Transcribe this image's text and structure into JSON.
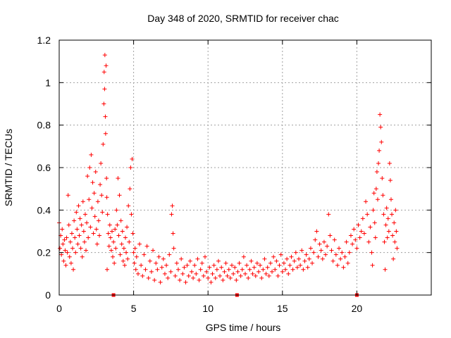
{
  "chart_data": {
    "type": "scatter",
    "title": "Day 348 of 2020, SRMTID for receiver chac",
    "xlabel": "GPS time / hours",
    "ylabel": "SRMTID / TECUs",
    "xlim": [
      0,
      25
    ],
    "ylim": [
      0,
      1.2
    ],
    "xticks": [
      0,
      5,
      10,
      15,
      20
    ],
    "yticks": [
      0,
      0.2,
      0.4,
      0.6,
      0.8,
      1,
      1.2
    ],
    "xtick_labels": [
      "0",
      "5",
      "10",
      "15",
      "20"
    ],
    "ytick_labels": [
      "0",
      "0.2",
      "0.4",
      "0.6",
      "0.8",
      "1",
      "1.2"
    ],
    "grid": true,
    "marker": "+",
    "color": "#ff0000",
    "gap_markers_x": [
      3.65,
      11.95,
      20.0
    ],
    "series": [
      {
        "name": "SRMTID",
        "points": [
          [
            0.0,
            0.34
          ],
          [
            0.05,
            0.22
          ],
          [
            0.1,
            0.28
          ],
          [
            0.15,
            0.19
          ],
          [
            0.2,
            0.31
          ],
          [
            0.25,
            0.24
          ],
          [
            0.3,
            0.16
          ],
          [
            0.35,
            0.26
          ],
          [
            0.4,
            0.21
          ],
          [
            0.45,
            0.14
          ],
          [
            0.5,
            0.27
          ],
          [
            0.55,
            0.2
          ],
          [
            0.6,
            0.47
          ],
          [
            0.65,
            0.33
          ],
          [
            0.7,
            0.18
          ],
          [
            0.75,
            0.25
          ],
          [
            0.8,
            0.15
          ],
          [
            0.85,
            0.29
          ],
          [
            0.9,
            0.22
          ],
          [
            0.95,
            0.12
          ],
          [
            1.0,
            0.35
          ],
          [
            1.05,
            0.27
          ],
          [
            1.1,
            0.2
          ],
          [
            1.15,
            0.39
          ],
          [
            1.2,
            0.31
          ],
          [
            1.25,
            0.24
          ],
          [
            1.3,
            0.42
          ],
          [
            1.35,
            0.28
          ],
          [
            1.4,
            0.36
          ],
          [
            1.45,
            0.22
          ],
          [
            1.5,
            0.33
          ],
          [
            1.55,
            0.18
          ],
          [
            1.6,
            0.44
          ],
          [
            1.65,
            0.3
          ],
          [
            1.7,
            0.25
          ],
          [
            1.75,
            0.38
          ],
          [
            1.8,
            0.21
          ],
          [
            1.85,
            0.34
          ],
          [
            1.9,
            0.56
          ],
          [
            1.95,
            0.27
          ],
          [
            2.0,
            0.45
          ],
          [
            2.05,
            0.6
          ],
          [
            2.1,
            0.32
          ],
          [
            2.15,
            0.66
          ],
          [
            2.2,
            0.41
          ],
          [
            2.25,
            0.53
          ],
          [
            2.3,
            0.29
          ],
          [
            2.35,
            0.48
          ],
          [
            2.4,
            0.37
          ],
          [
            2.45,
            0.58
          ],
          [
            2.5,
            0.31
          ],
          [
            2.55,
            0.24
          ],
          [
            2.6,
            0.44
          ],
          [
            2.65,
            0.35
          ],
          [
            2.7,
            0.28
          ],
          [
            2.75,
            0.52
          ],
          [
            2.8,
            0.62
          ],
          [
            2.85,
            0.47
          ],
          [
            2.9,
            0.39
          ],
          [
            2.95,
            0.71
          ],
          [
            3.0,
            0.9
          ],
          [
            3.02,
            1.05
          ],
          [
            3.05,
            0.97
          ],
          [
            3.07,
            1.13
          ],
          [
            3.1,
            0.84
          ],
          [
            3.12,
            0.76
          ],
          [
            3.15,
            1.08
          ],
          [
            3.18,
            0.55
          ],
          [
            3.2,
            0.46
          ],
          [
            3.22,
            0.12
          ],
          [
            3.25,
            0.38
          ],
          [
            3.3,
            0.29
          ],
          [
            3.35,
            0.23
          ],
          [
            3.4,
            0.33
          ],
          [
            3.45,
            0.27
          ],
          [
            3.5,
            0.21
          ],
          [
            3.55,
            0.3
          ],
          [
            3.6,
            0.18
          ],
          [
            3.65,
            0.25
          ],
          [
            3.7,
            0.15
          ],
          [
            3.75,
            0.31
          ],
          [
            3.8,
            0.22
          ],
          [
            3.85,
            0.4
          ],
          [
            3.9,
            0.33
          ],
          [
            3.95,
            0.55
          ],
          [
            4.0,
            0.28
          ],
          [
            4.05,
            0.47
          ],
          [
            4.1,
            0.19
          ],
          [
            4.15,
            0.35
          ],
          [
            4.2,
            0.24
          ],
          [
            4.25,
            0.3
          ],
          [
            4.3,
            0.16
          ],
          [
            4.35,
            0.22
          ],
          [
            4.4,
            0.14
          ],
          [
            4.45,
            0.27
          ],
          [
            4.5,
            0.2
          ],
          [
            4.55,
            0.32
          ],
          [
            4.6,
            0.17
          ],
          [
            4.65,
            0.42
          ],
          [
            4.7,
            0.25
          ],
          [
            4.75,
            0.5
          ],
          [
            4.8,
            0.6
          ],
          [
            4.85,
            0.38
          ],
          [
            4.9,
            0.64
          ],
          [
            4.95,
            0.29
          ],
          [
            5.0,
            0.2
          ],
          [
            5.05,
            0.15
          ],
          [
            5.1,
            0.22
          ],
          [
            5.15,
            0.12
          ],
          [
            5.2,
            0.18
          ],
          [
            5.3,
            0.1
          ],
          [
            5.4,
            0.24
          ],
          [
            5.5,
            0.14
          ],
          [
            5.6,
            0.09
          ],
          [
            5.7,
            0.19
          ],
          [
            5.8,
            0.12
          ],
          [
            5.9,
            0.23
          ],
          [
            6.0,
            0.08
          ],
          [
            6.1,
            0.16
          ],
          [
            6.2,
            0.11
          ],
          [
            6.3,
            0.21
          ],
          [
            6.4,
            0.07
          ],
          [
            6.5,
            0.15
          ],
          [
            6.6,
            0.12
          ],
          [
            6.7,
            0.18
          ],
          [
            6.8,
            0.06
          ],
          [
            6.9,
            0.13
          ],
          [
            7.0,
            0.17
          ],
          [
            7.1,
            0.1
          ],
          [
            7.2,
            0.14
          ],
          [
            7.3,
            0.08
          ],
          [
            7.4,
            0.19
          ],
          [
            7.5,
            0.11
          ],
          [
            7.55,
            0.38
          ],
          [
            7.6,
            0.42
          ],
          [
            7.65,
            0.29
          ],
          [
            7.7,
            0.22
          ],
          [
            7.8,
            0.09
          ],
          [
            7.9,
            0.15
          ],
          [
            8.0,
            0.12
          ],
          [
            8.1,
            0.07
          ],
          [
            8.2,
            0.17
          ],
          [
            8.3,
            0.1
          ],
          [
            8.4,
            0.13
          ],
          [
            8.5,
            0.06
          ],
          [
            8.6,
            0.14
          ],
          [
            8.7,
            0.09
          ],
          [
            8.8,
            0.16
          ],
          [
            8.9,
            0.11
          ],
          [
            9.0,
            0.08
          ],
          [
            9.1,
            0.14
          ],
          [
            9.2,
            0.1
          ],
          [
            9.3,
            0.17
          ],
          [
            9.4,
            0.07
          ],
          [
            9.5,
            0.12
          ],
          [
            9.6,
            0.15
          ],
          [
            9.7,
            0.09
          ],
          [
            9.8,
            0.18
          ],
          [
            9.9,
            0.11
          ],
          [
            10.0,
            0.08
          ],
          [
            10.1,
            0.13
          ],
          [
            10.2,
            0.06
          ],
          [
            10.3,
            0.1
          ],
          [
            10.4,
            0.14
          ],
          [
            10.5,
            0.08
          ],
          [
            10.6,
            0.12
          ],
          [
            10.7,
            0.16
          ],
          [
            10.8,
            0.09
          ],
          [
            10.9,
            0.13
          ],
          [
            11.0,
            0.07
          ],
          [
            11.1,
            0.11
          ],
          [
            11.2,
            0.15
          ],
          [
            11.3,
            0.09
          ],
          [
            11.4,
            0.12
          ],
          [
            11.5,
            0.08
          ],
          [
            11.6,
            0.14
          ],
          [
            11.7,
            0.1
          ],
          [
            11.8,
            0.13
          ],
          [
            11.9,
            0.07
          ],
          [
            12.0,
            0.11
          ],
          [
            12.1,
            0.15
          ],
          [
            12.2,
            0.09
          ],
          [
            12.3,
            0.12
          ],
          [
            12.4,
            0.18
          ],
          [
            12.5,
            0.1
          ],
          [
            12.6,
            0.14
          ],
          [
            12.7,
            0.08
          ],
          [
            12.8,
            0.12
          ],
          [
            12.9,
            0.16
          ],
          [
            13.0,
            0.1
          ],
          [
            13.1,
            0.13
          ],
          [
            13.2,
            0.09
          ],
          [
            13.3,
            0.15
          ],
          [
            13.4,
            0.11
          ],
          [
            13.5,
            0.14
          ],
          [
            13.6,
            0.08
          ],
          [
            13.7,
            0.12
          ],
          [
            13.8,
            0.17
          ],
          [
            13.9,
            0.1
          ],
          [
            14.0,
            0.13
          ],
          [
            14.1,
            0.09
          ],
          [
            14.2,
            0.15
          ],
          [
            14.3,
            0.11
          ],
          [
            14.4,
            0.18
          ],
          [
            14.5,
            0.12
          ],
          [
            14.6,
            0.16
          ],
          [
            14.7,
            0.09
          ],
          [
            14.8,
            0.14
          ],
          [
            14.9,
            0.19
          ],
          [
            15.0,
            0.11
          ],
          [
            15.1,
            0.15
          ],
          [
            15.2,
            0.12
          ],
          [
            15.3,
            0.17
          ],
          [
            15.4,
            0.1
          ],
          [
            15.5,
            0.14
          ],
          [
            15.6,
            0.18
          ],
          [
            15.7,
            0.12
          ],
          [
            15.8,
            0.16
          ],
          [
            15.9,
            0.2
          ],
          [
            16.0,
            0.13
          ],
          [
            16.1,
            0.17
          ],
          [
            16.2,
            0.14
          ],
          [
            16.3,
            0.21
          ],
          [
            16.4,
            0.12
          ],
          [
            16.5,
            0.16
          ],
          [
            16.6,
            0.19
          ],
          [
            16.7,
            0.13
          ],
          [
            16.8,
            0.17
          ],
          [
            16.9,
            0.22
          ],
          [
            17.0,
            0.15
          ],
          [
            17.1,
            0.2
          ],
          [
            17.2,
            0.26
          ],
          [
            17.3,
            0.3
          ],
          [
            17.4,
            0.18
          ],
          [
            17.5,
            0.24
          ],
          [
            17.6,
            0.21
          ],
          [
            17.7,
            0.17
          ],
          [
            17.8,
            0.25
          ],
          [
            17.9,
            0.19
          ],
          [
            18.0,
            0.23
          ],
          [
            18.1,
            0.38
          ],
          [
            18.2,
            0.28
          ],
          [
            18.3,
            0.21
          ],
          [
            18.4,
            0.16
          ],
          [
            18.5,
            0.26
          ],
          [
            18.6,
            0.19
          ],
          [
            18.7,
            0.14
          ],
          [
            18.8,
            0.22
          ],
          [
            18.9,
            0.17
          ],
          [
            19.0,
            0.2
          ],
          [
            19.1,
            0.13
          ],
          [
            19.2,
            0.18
          ],
          [
            19.3,
            0.25
          ],
          [
            19.4,
            0.15
          ],
          [
            19.5,
            0.2
          ],
          [
            19.6,
            0.28
          ],
          [
            19.7,
            0.24
          ],
          [
            19.8,
            0.31
          ],
          [
            19.9,
            0.26
          ],
          [
            20.0,
            0.22
          ],
          [
            20.1,
            0.33
          ],
          [
            20.2,
            0.27
          ],
          [
            20.3,
            0.3
          ],
          [
            20.4,
            0.36
          ],
          [
            20.5,
            0.29
          ],
          [
            20.6,
            0.44
          ],
          [
            20.7,
            0.38
          ],
          [
            20.8,
            0.25
          ],
          [
            20.9,
            0.32
          ],
          [
            21.0,
            0.2
          ],
          [
            21.05,
            0.14
          ],
          [
            21.1,
            0.4
          ],
          [
            21.15,
            0.48
          ],
          [
            21.2,
            0.34
          ],
          [
            21.25,
            0.27
          ],
          [
            21.3,
            0.5
          ],
          [
            21.35,
            0.58
          ],
          [
            21.4,
            0.45
          ],
          [
            21.45,
            0.62
          ],
          [
            21.5,
            0.68
          ],
          [
            21.55,
            0.85
          ],
          [
            21.6,
            0.79
          ],
          [
            21.65,
            0.72
          ],
          [
            21.7,
            0.55
          ],
          [
            21.75,
            0.47
          ],
          [
            21.8,
            0.38
          ],
          [
            21.85,
            0.25
          ],
          [
            21.9,
            0.12
          ],
          [
            21.95,
            0.33
          ],
          [
            22.0,
            0.41
          ],
          [
            22.05,
            0.27
          ],
          [
            22.1,
            0.36
          ],
          [
            22.15,
            0.3
          ],
          [
            22.2,
            0.62
          ],
          [
            22.25,
            0.54
          ],
          [
            22.3,
            0.45
          ],
          [
            22.35,
            0.38
          ],
          [
            22.4,
            0.28
          ],
          [
            22.45,
            0.17
          ],
          [
            22.5,
            0.34
          ],
          [
            22.55,
            0.25
          ],
          [
            22.6,
            0.4
          ],
          [
            22.65,
            0.3
          ],
          [
            22.7,
            0.22
          ]
        ]
      }
    ]
  }
}
